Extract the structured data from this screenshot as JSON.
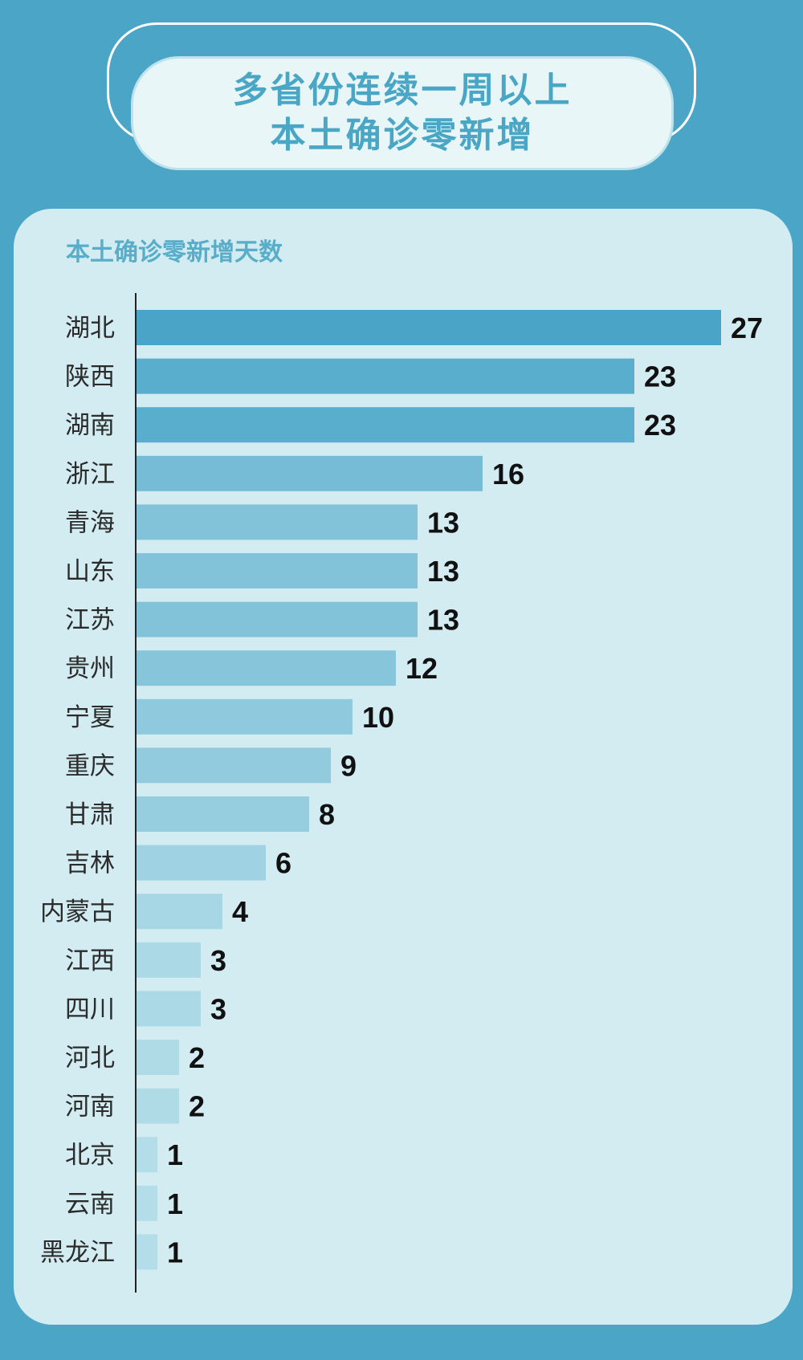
{
  "header": {
    "title_line1": "多省份连续一周以上",
    "title_line2": "本土确诊零新增"
  },
  "colors": {
    "background": "#4ba5c7",
    "panel": "#d3ecf2",
    "bar_darkest": "#49a4c8",
    "bar_lightest": "#b3dde8",
    "title_text": "#4aa6c5"
  },
  "chart_data": {
    "type": "bar",
    "orientation": "horizontal",
    "title": "本土确诊零新增天数",
    "categories": [
      "湖北",
      "陕西",
      "湖南",
      "浙江",
      "青海",
      "山东",
      "江苏",
      "贵州",
      "宁夏",
      "重庆",
      "甘肃",
      "吉林",
      "内蒙古",
      "江西",
      "四川",
      "河北",
      "河南",
      "北京",
      "云南",
      "黑龙江"
    ],
    "values": [
      27,
      23,
      23,
      16,
      13,
      13,
      13,
      12,
      10,
      9,
      8,
      6,
      4,
      3,
      3,
      2,
      2,
      1,
      1,
      1
    ],
    "data_labels": true,
    "grid": false,
    "legend": "none"
  }
}
